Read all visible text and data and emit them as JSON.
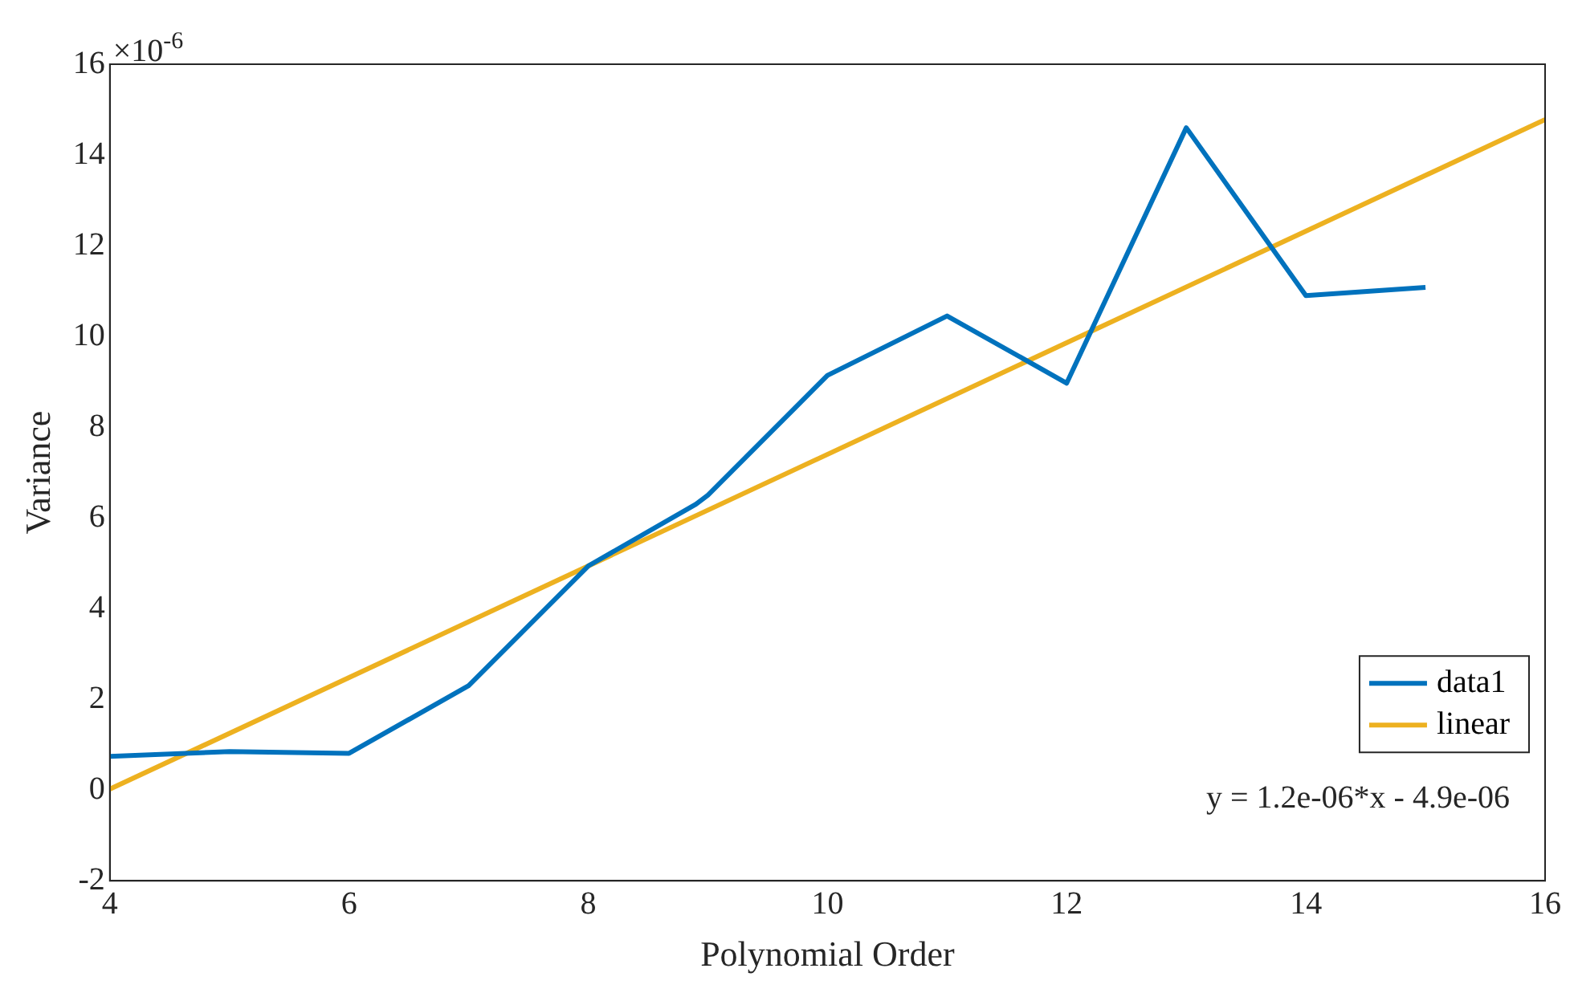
{
  "chart_data": {
    "type": "line",
    "xlabel": "Polynomial Order",
    "ylabel": "Variance",
    "annotations": [
      "×10$^{-6}$",
      "y = 1.2e-06*x - 4.9e-06"
    ],
    "xlim": [
      4,
      16
    ],
    "xticks": [
      4,
      6,
      8,
      10,
      12,
      14,
      16
    ],
    "ylim": [
      -2,
      16
    ],
    "yticks": [
      -2,
      0,
      2,
      4,
      6,
      8,
      10,
      12,
      14,
      16
    ],
    "grid": false,
    "legend": "bottom right",
    "marker": "none",
    "line_style": "solid",
    "series": [
      {
        "name": "data1",
        "color": "#0072bd",
        "x": [
          4,
          5,
          6,
          7,
          8,
          8.9,
          9,
          10,
          11,
          12,
          13,
          14,
          15
        ],
        "values": [
          0.74,
          0.85,
          0.81,
          2.3,
          4.94,
          6.3,
          6.5,
          9.14,
          10.45,
          8.97,
          14.6,
          10.9,
          11.08
        ]
      },
      {
        "name": "linear",
        "color": "#edb120",
        "x": [
          4,
          16
        ],
        "values": [
          0.02,
          14.78
        ]
      }
    ]
  }
}
